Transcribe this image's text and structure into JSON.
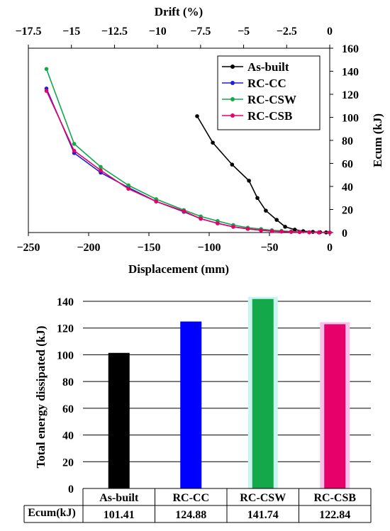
{
  "chart_data": [
    {
      "type": "line",
      "title": "",
      "xlabel": "Displacement (mm)",
      "ylabel": "Ecum (kJ)",
      "x2label": "Drift (%)",
      "xlim": [
        -250,
        0
      ],
      "ylim": [
        0,
        160
      ],
      "x2lim": [
        -17.5,
        0
      ],
      "xticks": [
        "−250",
        "−200",
        "−150",
        "−100",
        "−50",
        "0"
      ],
      "yticks": [
        "0",
        "20",
        "40",
        "60",
        "80",
        "100",
        "120",
        "140",
        "160"
      ],
      "x2ticks": [
        "−17.5",
        "−15",
        "−12.5",
        "−10",
        "−7.5",
        "−5",
        "−2.5",
        "0"
      ],
      "legend_position": "top-right",
      "grid": false,
      "series": [
        {
          "name": "As-built",
          "color": "#000000",
          "points": [
            [
              -110,
              101
            ],
            [
              -97,
              78
            ],
            [
              -81,
              59
            ],
            [
              -67,
              45
            ],
            [
              -60,
              30
            ],
            [
              -53,
              19
            ],
            [
              -44,
              11
            ],
            [
              -37,
              5
            ],
            [
              -29,
              2.5
            ],
            [
              -22,
              1.2
            ],
            [
              -14,
              0.6
            ],
            [
              -8,
              0.3
            ],
            [
              -3,
              0.1
            ],
            [
              0,
              0
            ]
          ]
        },
        {
          "name": "RC-CC",
          "color": "#1f1fd6",
          "points": [
            [
              -235,
              125
            ],
            [
              -212,
              69
            ],
            [
              -190,
              52
            ],
            [
              -167,
              39
            ],
            [
              -144,
              27
            ],
            [
              -121,
              18
            ],
            [
              -107,
              12
            ],
            [
              -93,
              8
            ],
            [
              -80,
              5
            ],
            [
              -68,
              3.2
            ],
            [
              -57,
              2
            ],
            [
              -48,
              1.3
            ],
            [
              -40,
              0.9
            ],
            [
              -32,
              0.6
            ],
            [
              -25,
              0.4
            ],
            [
              -17,
              0.2
            ],
            [
              -9,
              0.1
            ],
            [
              0,
              0
            ]
          ]
        },
        {
          "name": "RC-CSW",
          "color": "#13a84a",
          "points": [
            [
              -235,
              142
            ],
            [
              -212,
              77
            ],
            [
              -190,
              57
            ],
            [
              -167,
              41
            ],
            [
              -144,
              29
            ],
            [
              -121,
              19.5
            ],
            [
              -107,
              14
            ],
            [
              -93,
              10
            ],
            [
              -80,
              6.5
            ],
            [
              -68,
              4.2
            ],
            [
              -57,
              3
            ],
            [
              -48,
              2
            ],
            [
              -40,
              1.4
            ],
            [
              -32,
              0.9
            ],
            [
              -25,
              0.6
            ],
            [
              -17,
              0.3
            ],
            [
              -9,
              0.1
            ],
            [
              0,
              0
            ]
          ]
        },
        {
          "name": "RC-CSB",
          "color": "#e8006a",
          "points": [
            [
              -235,
              123
            ],
            [
              -212,
              71
            ],
            [
              -190,
              54
            ],
            [
              -167,
              38
            ],
            [
              -144,
              27
            ],
            [
              -121,
              18.5
            ],
            [
              -107,
              12
            ],
            [
              -93,
              8
            ],
            [
              -80,
              5
            ],
            [
              -68,
              3.2
            ],
            [
              -57,
              2
            ],
            [
              -48,
              1.3
            ],
            [
              -40,
              0.9
            ],
            [
              -32,
              0.6
            ],
            [
              -25,
              0.4
            ],
            [
              -17,
              0.2
            ],
            [
              -9,
              0.1
            ],
            [
              0,
              0
            ]
          ]
        }
      ]
    },
    {
      "type": "bar",
      "title": "",
      "ylabel": "Total energy dissipated (kJ)",
      "ylim": [
        0,
        140
      ],
      "yticks": [
        "0",
        "20",
        "40",
        "60",
        "80",
        "100",
        "120",
        "140"
      ],
      "grid": true,
      "categories": [
        "As-built",
        "RC-CC",
        "RC-CSW",
        "RC-CSB"
      ],
      "values": [
        101.41,
        124.88,
        141.74,
        122.84
      ],
      "colors": [
        "#000000",
        "#0000ff",
        "#13a84a",
        "#e8006a"
      ],
      "glow_colors": [
        null,
        null,
        "#c8f5f0",
        "#f7c2ea"
      ],
      "table_row_label": "Ecum(kJ)",
      "table_values": [
        "101.41",
        "124.88",
        "141.74",
        "122.84"
      ]
    }
  ]
}
